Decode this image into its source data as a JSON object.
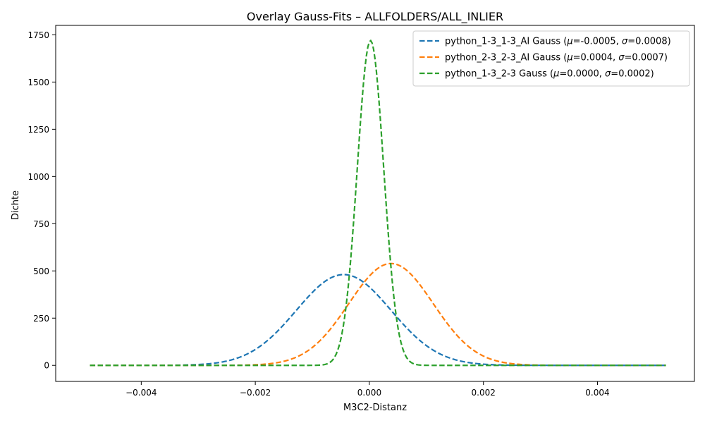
{
  "chart_data": {
    "type": "line",
    "title": "Overlay Gauss-Fits – ALLFOLDERS/ALL_INLIER",
    "xlabel": "M3C2-Distanz",
    "ylabel": "Dichte",
    "xlim": [
      -0.0055,
      0.0057
    ],
    "ylim": [
      -85,
      1800
    ],
    "x_ticks": [
      -0.004,
      -0.002,
      0,
      0.002,
      0.004
    ],
    "x_tick_labels": [
      "−0.004",
      "−0.002",
      "0.000",
      "0.002",
      "0.004"
    ],
    "y_ticks": [
      0,
      250,
      500,
      750,
      1000,
      1250,
      1500,
      1750
    ],
    "y_tick_labels": [
      "0",
      "250",
      "500",
      "750",
      "1000",
      "1250",
      "1500",
      "1750"
    ],
    "x_range": [
      -0.0049,
      0.0052
    ],
    "grid": false,
    "legend_position": "top-right",
    "line_style": "dashed",
    "series": [
      {
        "name": "python_1-3_1-3_AI Gauss (μ=-0.0005, σ=0.0008)",
        "legend_prefix": "python_1-3_1-3_AI Gauss (",
        "legend_mu": "=-0.0005, ",
        "legend_sigma": "=0.0008)",
        "distribution": "gaussian",
        "mu": -0.00045,
        "sigma": 0.00083,
        "color": "#1f77b4"
      },
      {
        "name": "python_2-3_2-3_AI Gauss (μ=0.0004, σ=0.0007)",
        "legend_prefix": "python_2-3_2-3_AI Gauss (",
        "legend_mu": "=0.0004, ",
        "legend_sigma": "=0.0007)",
        "distribution": "gaussian",
        "mu": 0.00038,
        "sigma": 0.00074,
        "color": "#ff7f0e"
      },
      {
        "name": "python_1-3_2-3 Gauss (μ=0.0000, σ=0.0002)",
        "legend_prefix": "python_1-3_2-3 Gauss (",
        "legend_mu": "=0.0000, ",
        "legend_sigma": "=0.0002)",
        "distribution": "gaussian",
        "mu": 2e-05,
        "sigma": 0.000232,
        "color": "#2ca02c"
      }
    ]
  }
}
